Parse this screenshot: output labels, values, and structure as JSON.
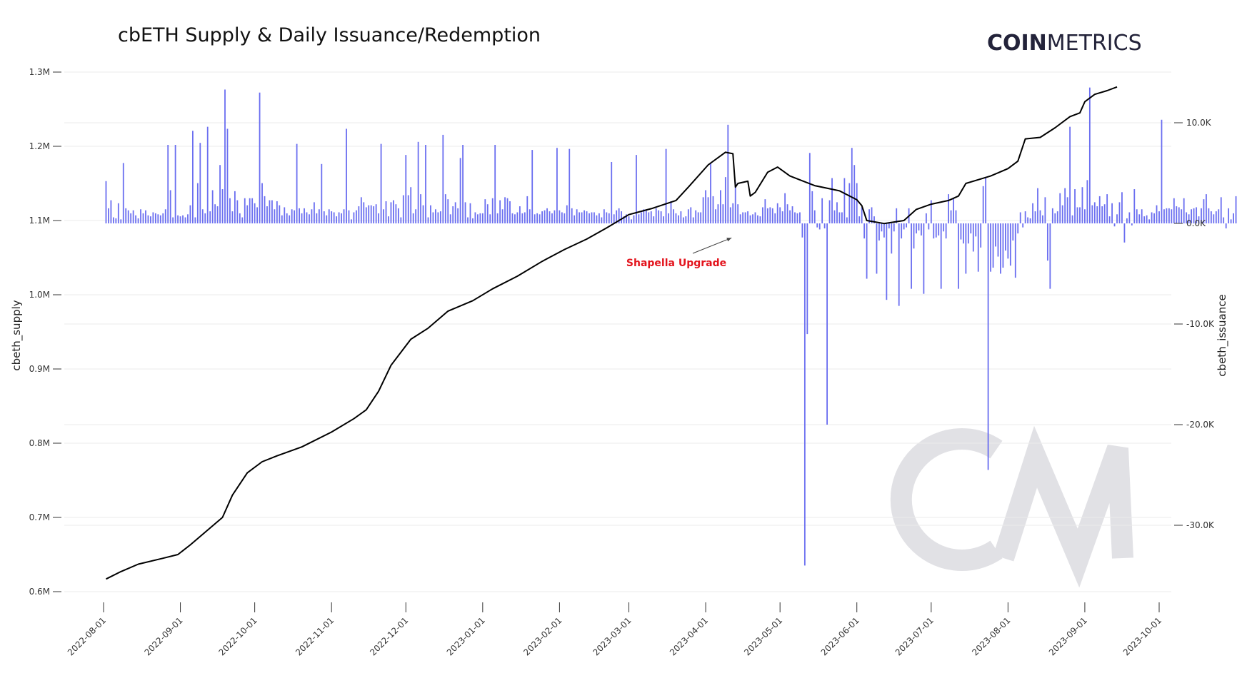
{
  "chart_data": {
    "type": "bar+line",
    "title": "cbETH Supply & Daily Issuance/Redemption",
    "logo": {
      "bold": "COIN",
      "light": "METRICS"
    },
    "y_left": {
      "label": "cbeth_supply",
      "range": [
        0.6,
        1.3
      ],
      "unit": "M",
      "ticks": [
        {
          "v": 1.3,
          "label": "1.3M"
        },
        {
          "v": 1.2,
          "label": "1.2M"
        },
        {
          "v": 1.1,
          "label": "1.1M"
        },
        {
          "v": 1.0,
          "label": "1.0M"
        },
        {
          "v": 0.9,
          "label": "0.9M"
        },
        {
          "v": 0.8,
          "label": "0.8M"
        },
        {
          "v": 0.7,
          "label": "0.7M"
        },
        {
          "v": 0.6,
          "label": "0.6M"
        }
      ]
    },
    "y_right": {
      "label": "cbeth_issuance",
      "range": [
        -35.6,
        15.2
      ],
      "unit": "K",
      "ticks": [
        {
          "v": 10,
          "label": "10.0K"
        },
        {
          "v": 0,
          "label": "0.0K"
        },
        {
          "v": -10,
          "label": "-10.0K"
        },
        {
          "v": -20,
          "label": "-20.0K"
        },
        {
          "v": -30,
          "label": "-30.0K"
        }
      ]
    },
    "x_axis": {
      "start": "2022-08-01",
      "end": "2023-10-01",
      "ticks": [
        "2022-08-01",
        "2022-09-01",
        "2022-10-01",
        "2022-11-01",
        "2022-12-01",
        "2023-01-01",
        "2023-02-01",
        "2023-03-01",
        "2023-04-01",
        "2023-05-01",
        "2023-06-01",
        "2023-07-01",
        "2023-08-01",
        "2023-09-01",
        "2023-10-01"
      ]
    },
    "issuance_series": {
      "name": "cbeth_issuance",
      "color": "#6a6ef0",
      "start_date": "2022-08-02",
      "values_k": [
        4.2,
        1.5,
        2.3,
        0.6,
        0.5,
        2.0,
        0.4,
        6.0,
        1.5,
        1.3,
        1.0,
        1.3,
        0.8,
        0.5,
        1.4,
        1.0,
        1.3,
        0.8,
        0.7,
        1.1,
        1.0,
        0.9,
        0.8,
        1.0,
        1.4,
        7.8,
        3.3,
        0.6,
        7.8,
        0.8,
        0.7,
        0.8,
        0.6,
        0.9,
        1.8,
        9.2,
        0.6,
        4.0,
        8.0,
        1.4,
        1.0,
        9.6,
        1.2,
        3.3,
        1.9,
        1.7,
        5.8,
        3.4,
        13.3,
        9.4,
        2.5,
        1.2,
        3.2,
        2.3,
        1.0,
        0.6,
        2.5,
        1.8,
        2.5,
        2.5,
        2.0,
        1.6,
        13.0,
        4.0,
        2.7,
        1.7,
        2.3,
        2.3,
        1.4,
        2.2,
        1.8,
        0.8,
        1.6,
        1.0,
        0.8,
        1.4,
        1.3,
        7.9,
        1.5,
        1.0,
        1.5,
        1.1,
        0.9,
        1.4,
        2.1,
        1.0,
        1.4,
        5.9,
        1.2,
        0.8,
        1.4,
        1.2,
        1.1,
        0.7,
        1.1,
        1.0,
        1.4,
        9.4,
        1.3,
        0.4,
        1.1,
        1.3,
        1.7,
        2.6,
        2.1,
        1.6,
        1.8,
        1.8,
        1.7,
        1.9,
        1.0,
        7.9,
        1.4,
        2.2,
        0.7,
        2.1,
        2.3,
        1.9,
        1.5,
        0.6,
        2.8,
        6.8,
        2.8,
        3.6,
        1.0,
        1.4,
        8.1,
        2.9,
        1.8,
        7.8,
        0.6,
        1.8,
        1.1,
        1.4,
        1.1,
        1.2,
        8.8,
        2.9,
        2.4,
        0.9,
        1.7,
        2.1,
        1.5,
        6.5,
        7.8,
        2.1,
        0.6,
        2.0,
        0.5,
        1.1,
        0.9,
        1.0,
        1.0,
        2.4,
        1.9,
        0.9,
        2.5,
        7.8,
        1.0,
        2.3,
        1.4,
        2.6,
        2.5,
        2.2,
        1.0,
        0.9,
        1.1,
        1.7,
        1.0,
        1.1,
        2.7,
        1.4,
        7.3,
        0.9,
        1.0,
        0.9,
        1.2,
        1.3,
        1.5,
        1.2,
        1.0,
        1.3,
        7.5,
        1.3,
        1.1,
        1.0,
        1.8,
        7.4,
        1.5,
        0.8,
        1.4,
        1.1,
        1.1,
        1.3,
        1.2,
        1.0,
        1.1,
        1.1,
        0.8,
        1.0,
        0.6,
        1.4,
        1.1,
        1.0,
        6.1,
        0.9,
        1.3,
        1.5,
        1.2,
        0.7,
        0.9,
        0.7,
        0.4,
        0.8,
        6.8,
        0.9,
        1.1,
        1.4,
        1.3,
        1.1,
        1.2,
        0.7,
        1.5,
        1.3,
        1.2,
        0.7,
        7.4,
        1.0,
        2.2,
        1.4,
        1.0,
        0.8,
        1.2,
        0.6,
        0.7,
        1.4,
        1.6,
        0.6,
        1.3,
        1.1,
        1.1,
        2.6,
        3.3,
        2.6,
        6.0,
        2.7,
        1.4,
        1.9,
        3.3,
        1.9,
        4.6,
        9.8,
        1.6,
        2.0,
        4.1,
        1.9,
        0.9,
        1.1,
        1.1,
        1.2,
        0.8,
        0.9,
        1.1,
        0.8,
        0.7,
        1.6,
        2.4,
        1.5,
        1.6,
        1.5,
        1.0,
        2.0,
        1.6,
        1.2,
        3.0,
        1.9,
        1.3,
        1.7,
        1.1,
        1.0,
        1.1,
        -1.4,
        -34.0,
        -11.0,
        7.0,
        3.2,
        1.3,
        -0.4,
        -0.6,
        2.5,
        -0.5,
        -20.0,
        2.3,
        4.5,
        1.3,
        2.1,
        1.1,
        1.1,
        4.5,
        0.6,
        4.0,
        7.5,
        5.8,
        4.0,
        0.7,
        1.6,
        -1.5,
        -5.5,
        1.4,
        1.6,
        0.7,
        -5.0,
        -1.7,
        -0.8,
        -1.4,
        -7.6,
        -0.5,
        -3.0,
        -0.8,
        1.5,
        -8.2,
        -1.5,
        -0.6,
        -0.4,
        1.5,
        -6.5,
        -2.5,
        -1.0,
        -0.7,
        -1.2,
        -7.0,
        1.0,
        -0.6,
        2.3,
        -1.5,
        -1.4,
        -1.2,
        -6.5,
        -0.8,
        -1.5,
        2.9,
        1.3,
        2.5,
        1.3,
        -6.5,
        -1.6,
        -2.0,
        -5.0,
        -2.0,
        -1.0,
        -2.8,
        -1.3,
        -4.8,
        -2.4,
        3.7,
        4.5,
        -24.5,
        -4.8,
        -4.4,
        -2.3,
        -3.3,
        -5.0,
        -4.4,
        -2.7,
        -3.5,
        -4.2,
        -1.7,
        -5.4,
        -1.0,
        1.1,
        -0.4,
        1.2,
        0.6,
        0.5,
        2.0,
        1.2,
        3.5,
        1.3,
        0.8,
        2.6,
        -3.7,
        -6.5,
        1.5,
        1.0,
        1.2,
        3.0,
        1.8,
        3.5,
        2.6,
        9.6,
        0.8,
        3.4,
        1.6,
        1.6,
        3.6,
        1.4,
        4.3,
        13.5,
        1.8,
        2.1,
        1.7,
        2.7,
        1.7,
        1.9,
        2.9,
        0.7,
        2.0,
        -0.3,
        0.9,
        2.1,
        3.1,
        -1.9,
        0.5,
        1.1,
        -0.2,
        3.4,
        1.4,
        0.9,
        1.4,
        0.7,
        0.8,
        0.4,
        1.1,
        1.0,
        1.8,
        1.2,
        10.3,
        1.4,
        1.5,
        1.5,
        1.4,
        2.5,
        1.7,
        1.6,
        1.4,
        2.5,
        1.1,
        0.9,
        1.4,
        1.5,
        1.6,
        0.7,
        1.5,
        2.4,
        2.9,
        1.5,
        1.2,
        0.9,
        1.2,
        1.4,
        2.6,
        0.6,
        -0.5,
        1.5,
        0.4,
        1.0,
        2.7,
        1.9,
        0.7,
        1.5,
        3.0,
        3.1,
        3.2,
        3.0,
        2.2,
        -1.0,
        1.0,
        1.5,
        11.4,
        1.3,
        1.0,
        1.2,
        1.4,
        1.7,
        2.1,
        -1.9,
        -4.1,
        1.1,
        1.2,
        1.3,
        0.6,
        0.8,
        1.6,
        2.3,
        1.0,
        1.3,
        4.0,
        1.4,
        2.1,
        0.8,
        1.0,
        1.0,
        0.7,
        1.8,
        1.0,
        -2.4,
        0.5,
        1.0,
        1.2,
        0.6,
        0.8,
        1.3,
        1.8,
        1.2,
        3.3,
        -1.5,
        1.8,
        1.0,
        1.2,
        1.3,
        2.3,
        2.1,
        0.8,
        4.1,
        1.1,
        1.2,
        0.8,
        1.1,
        1.3,
        1.0,
        1.0,
        1.5,
        1.2,
        1.6,
        1.0,
        1.3,
        1.3,
        1.0,
        2.5,
        1.8,
        0.8,
        1.1,
        1.1,
        1.0,
        1.3,
        1.9,
        1.5,
        1.4,
        1.1,
        1.3,
        5.5,
        3.3,
        2.4,
        1.6,
        2.0,
        1.6,
        4.0,
        0.9,
        1.4,
        2.6,
        1.3,
        0.8,
        2.0,
        -0.4,
        2.4,
        1.0,
        1.3,
        2.0,
        1.1,
        0.9,
        0.6,
        1.2,
        1.3,
        1.0,
        1.3,
        3.4,
        5.6,
        1.3,
        3.2,
        1.0,
        1.3,
        1.8,
        2.5,
        1.1,
        1.2,
        1.5,
        1.5,
        2.0,
        1.5,
        1.3,
        0.9,
        1.4,
        0.9,
        0.6,
        1.1,
        3.3,
        0.8,
        0.9,
        2.3,
        1.5,
        1.3,
        1.2,
        5.6,
        1.5,
        2.0,
        1.9,
        1.3,
        1.6,
        1.9,
        1.8,
        1.0,
        1.0,
        1.3,
        1.7,
        1.8,
        1.5,
        1.3,
        4.0,
        1.1,
        1.6,
        0.5,
        1.6,
        0.9,
        1.4,
        1.1,
        1.5,
        1.4
      ]
    },
    "supply_series": {
      "name": "cbeth_supply",
      "color": "#000000",
      "points_m": [
        [
          "2022-08-02",
          0.617
        ],
        [
          "2022-08-08",
          0.627
        ],
        [
          "2022-08-15",
          0.637
        ],
        [
          "2022-08-25",
          0.645
        ],
        [
          "2022-08-31",
          0.65
        ],
        [
          "2022-09-05",
          0.663
        ],
        [
          "2022-09-12",
          0.683
        ],
        [
          "2022-09-18",
          0.7
        ],
        [
          "2022-09-22",
          0.73
        ],
        [
          "2022-09-28",
          0.76
        ],
        [
          "2022-10-04",
          0.775
        ],
        [
          "2022-10-10",
          0.783
        ],
        [
          "2022-10-20",
          0.795
        ],
        [
          "2022-11-01",
          0.815
        ],
        [
          "2022-11-10",
          0.833
        ],
        [
          "2022-11-15",
          0.845
        ],
        [
          "2022-11-20",
          0.87
        ],
        [
          "2022-11-25",
          0.905
        ],
        [
          "2022-12-03",
          0.94
        ],
        [
          "2022-12-10",
          0.955
        ],
        [
          "2022-12-18",
          0.978
        ],
        [
          "2022-12-28",
          0.992
        ],
        [
          "2023-01-05",
          1.008
        ],
        [
          "2023-01-15",
          1.025
        ],
        [
          "2023-01-25",
          1.045
        ],
        [
          "2023-02-03",
          1.061
        ],
        [
          "2023-02-12",
          1.075
        ],
        [
          "2023-02-20",
          1.09
        ],
        [
          "2023-03-01",
          1.108
        ],
        [
          "2023-03-10",
          1.116
        ],
        [
          "2023-03-20",
          1.127
        ],
        [
          "2023-03-25",
          1.145
        ],
        [
          "2023-04-02",
          1.175
        ],
        [
          "2023-04-09",
          1.192
        ],
        [
          "2023-04-12",
          1.19
        ],
        [
          "2023-04-13",
          1.145
        ],
        [
          "2023-04-14",
          1.15
        ],
        [
          "2023-04-18",
          1.153
        ],
        [
          "2023-04-19",
          1.133
        ],
        [
          "2023-04-21",
          1.138
        ],
        [
          "2023-04-26",
          1.165
        ],
        [
          "2023-04-30",
          1.172
        ],
        [
          "2023-05-05",
          1.16
        ],
        [
          "2023-05-15",
          1.147
        ],
        [
          "2023-05-25",
          1.14
        ],
        [
          "2023-06-01",
          1.128
        ],
        [
          "2023-06-03",
          1.12
        ],
        [
          "2023-06-05",
          1.1
        ],
        [
          "2023-06-12",
          1.096
        ],
        [
          "2023-06-20",
          1.1
        ],
        [
          "2023-06-25",
          1.115
        ],
        [
          "2023-07-01",
          1.122
        ],
        [
          "2023-07-08",
          1.127
        ],
        [
          "2023-07-12",
          1.133
        ],
        [
          "2023-07-15",
          1.15
        ],
        [
          "2023-07-25",
          1.16
        ],
        [
          "2023-08-01",
          1.17
        ],
        [
          "2023-08-05",
          1.18
        ],
        [
          "2023-08-08",
          1.21
        ],
        [
          "2023-08-14",
          1.212
        ],
        [
          "2023-08-20",
          1.225
        ],
        [
          "2023-08-26",
          1.24
        ],
        [
          "2023-08-30",
          1.245
        ],
        [
          "2023-09-01",
          1.26
        ],
        [
          "2023-09-05",
          1.27
        ],
        [
          "2023-09-10",
          1.275
        ],
        [
          "2023-09-14",
          1.28
        ]
      ]
    },
    "annotation": {
      "text": "Shapella Upgrade",
      "color": "#e3141d",
      "target_date": "2023-04-12",
      "target_k": -1.3
    },
    "grid": true,
    "legend": "none"
  }
}
